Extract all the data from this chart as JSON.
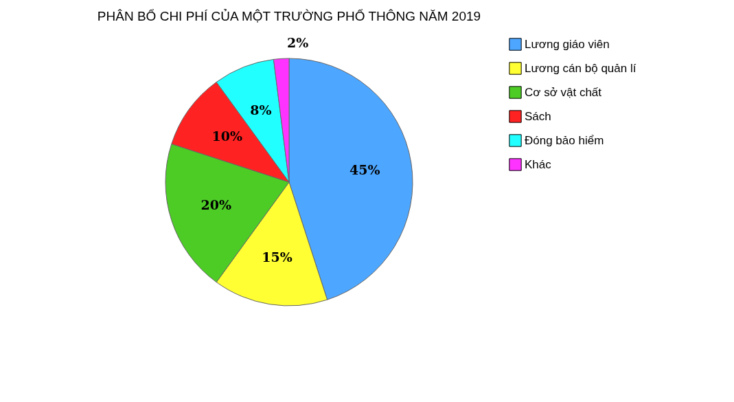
{
  "chart_data": {
    "type": "pie",
    "title": "PHÂN BỔ CHI PHÍ CỦA MỘT TRƯỜNG PHỔ THÔNG NĂM 2019",
    "categories": [
      "Lương giáo viên",
      "Lương cán bộ quản lí",
      "Cơ sở vật chất",
      "Sách",
      "Đóng bảo hiểm",
      "Khác"
    ],
    "values": [
      45,
      15,
      20,
      10,
      8,
      2
    ],
    "colors": [
      "#4da6ff",
      "#ffff33",
      "#4dcc26",
      "#ff2222",
      "#22ffff",
      "#ff33ff"
    ],
    "value_labels": [
      "45%",
      "15%",
      "20%",
      "10%",
      "8%",
      "2%"
    ],
    "legend": "right"
  }
}
